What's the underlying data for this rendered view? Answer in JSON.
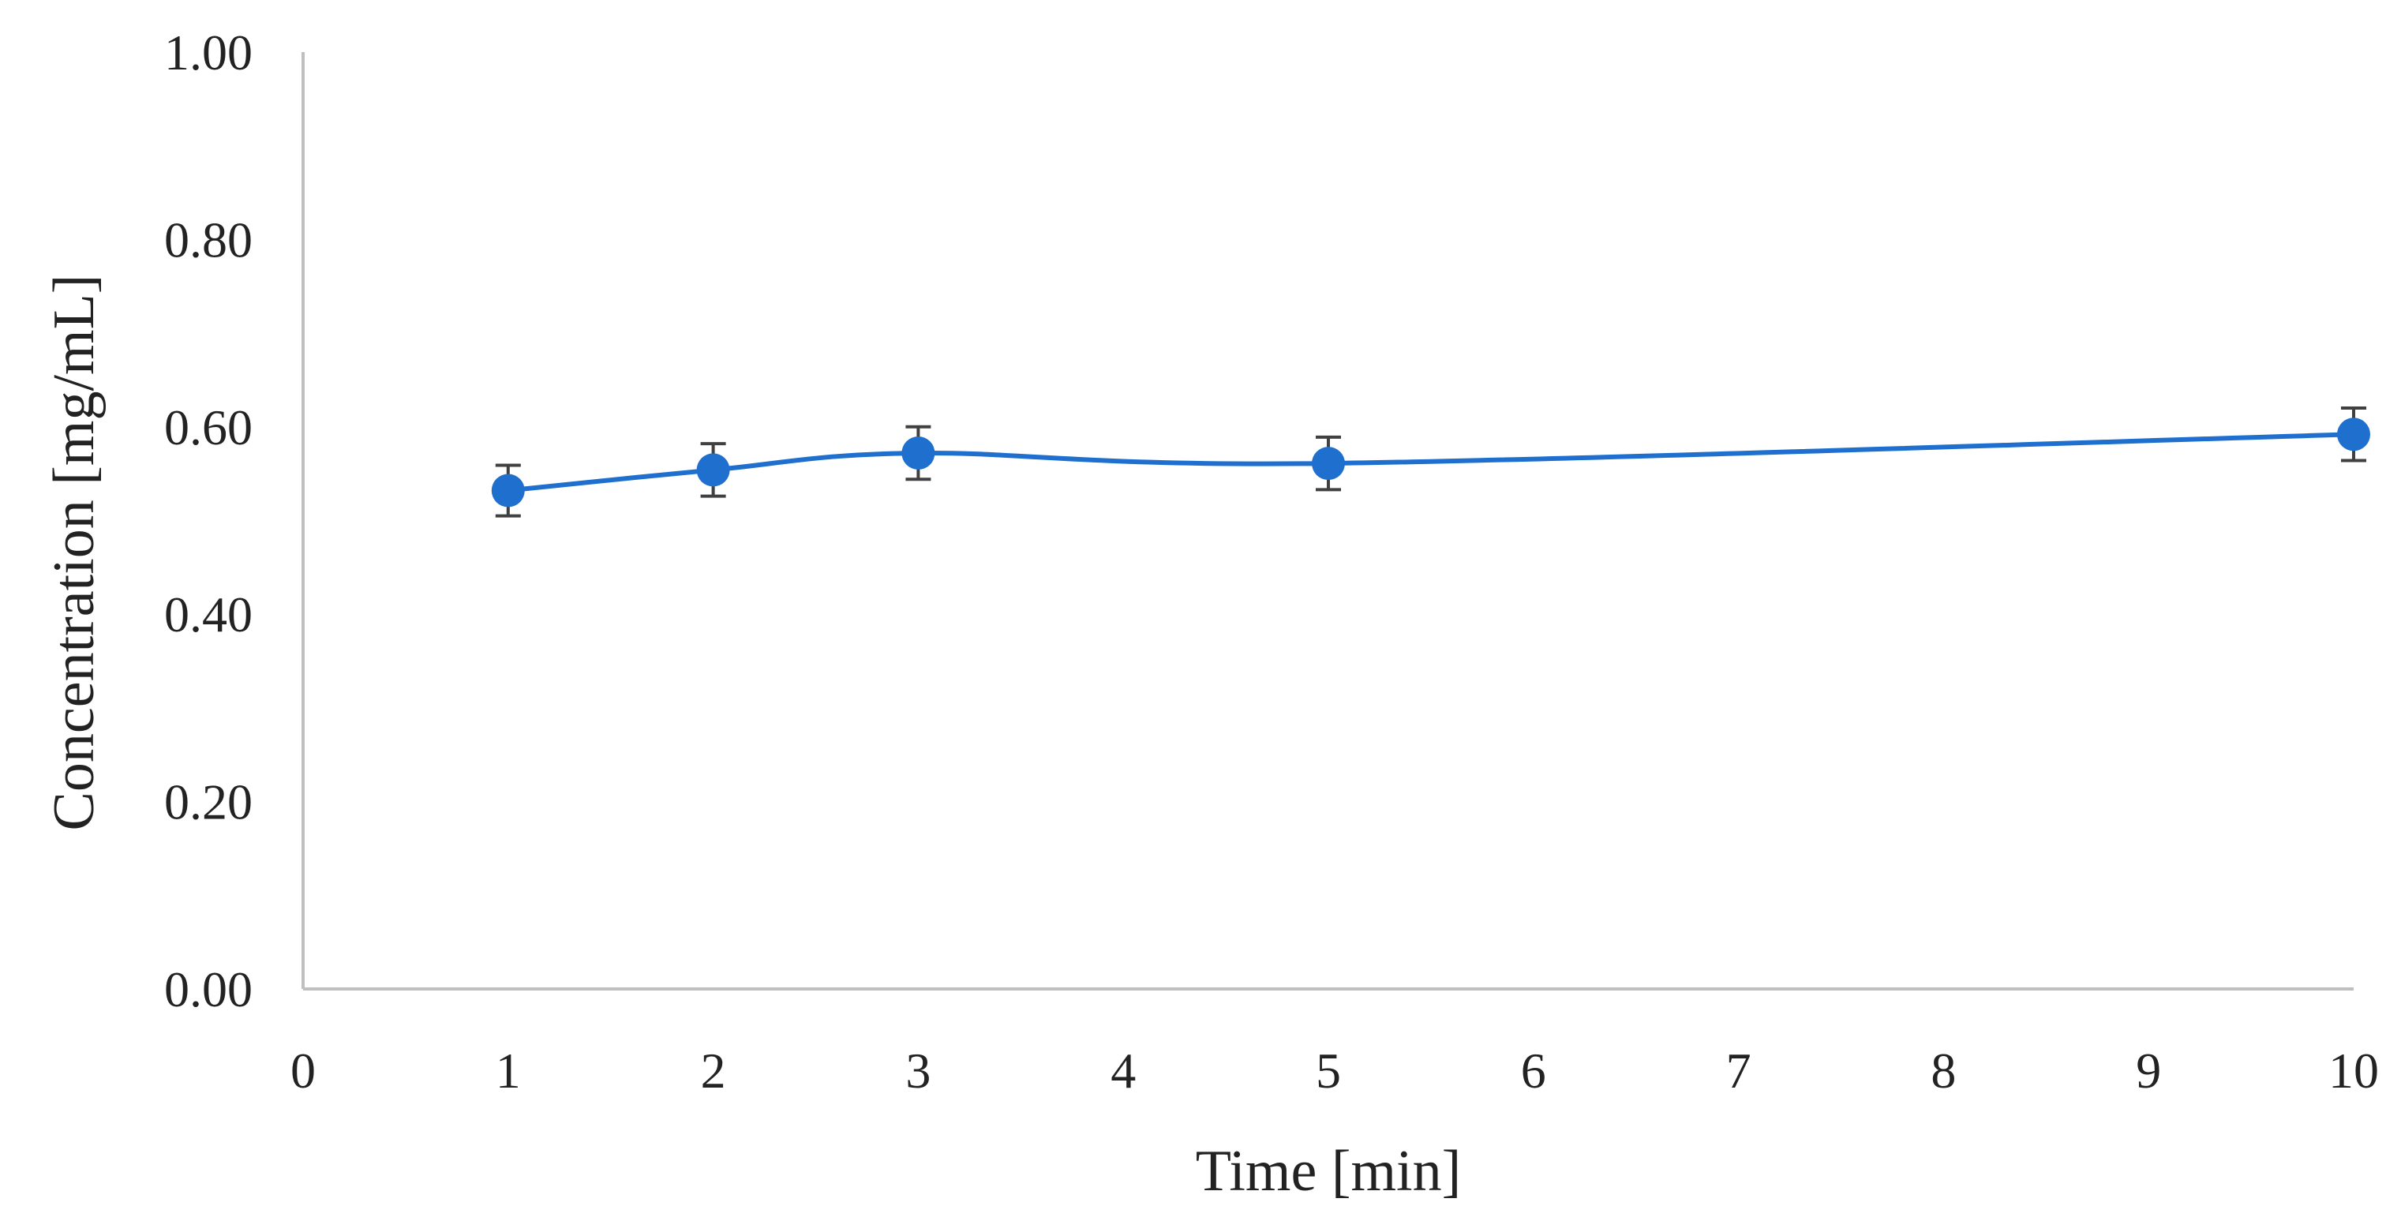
{
  "chart_data": {
    "type": "line",
    "xlabel": "Time [min]",
    "ylabel": "Concentration [mg/mL]",
    "xlim": [
      0,
      10
    ],
    "ylim": [
      0,
      1
    ],
    "x_ticks": [
      "0",
      "1",
      "2",
      "3",
      "4",
      "5",
      "6",
      "7",
      "8",
      "9",
      "10"
    ],
    "y_ticks": [
      "0.00",
      "0.20",
      "0.40",
      "0.60",
      "0.80",
      "1.00"
    ],
    "grid": false,
    "legend": "none",
    "smooth": true,
    "series": [
      {
        "x": [
          1,
          2,
          3,
          5,
          10
        ],
        "values": [
          0.532,
          0.554,
          0.572,
          0.561,
          0.592
        ],
        "error": [
          0.027,
          0.028,
          0.028,
          0.028,
          0.028
        ]
      }
    ],
    "colors": {
      "series": "#1f6fcf",
      "axis": "#bfbfbf",
      "error_bar": "#404040",
      "text": "#222222"
    }
  }
}
